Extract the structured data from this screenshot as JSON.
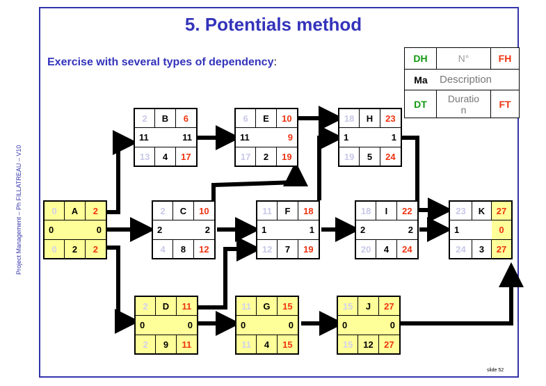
{
  "slide": {
    "title": "5. Potentials method",
    "subtitle": "Exercise with several types of dependency",
    "subtitle_colon": ":",
    "side_label": "Project Management – Ph FILLATREAU – V10",
    "slide_number": "slide 52"
  },
  "legend": {
    "dh": "DH",
    "no": "N°",
    "fh": "FH",
    "ma": "Ma",
    "description": "Description",
    "duration": "Duratio\nn",
    "dt": "DT",
    "ft": "FT"
  },
  "colors": {
    "title_blue": "#3333bb",
    "early_red": "#ee3311",
    "late_lavender": "#c8c8e8",
    "legend_green": "#119911",
    "critical_yellow": "#ffff99"
  },
  "tasks": {
    "A": {
      "es": "0",
      "name": "A",
      "ef": "2",
      "ml": "0",
      "mr": "0",
      "ls": "0",
      "dur": "2",
      "lf": "2"
    },
    "B": {
      "es": "2",
      "name": "B",
      "ef": "6",
      "ml": "11",
      "mr": "11",
      "ls": "13",
      "dur": "4",
      "lf": "17"
    },
    "C": {
      "es": "2",
      "name": "C",
      "ef": "10",
      "ml": "2",
      "mr": "2",
      "ls": "4",
      "dur": "8",
      "lf": "12"
    },
    "D": {
      "es": "2",
      "name": "D",
      "ef": "11",
      "ml": "0",
      "mr": "0",
      "ls": "2",
      "dur": "9",
      "lf": "11"
    },
    "E": {
      "es": "6",
      "name": "E",
      "ef": "10",
      "ml": "11",
      "mr": "9",
      "ls": "17",
      "dur": "2",
      "lf": "19"
    },
    "F": {
      "es": "11",
      "name": "F",
      "ef": "18",
      "ml": "1",
      "mr": "1",
      "ls": "12",
      "dur": "7",
      "lf": "19"
    },
    "G": {
      "es": "11",
      "name": "G",
      "ef": "15",
      "ml": "0",
      "mr": "0",
      "ls": "11",
      "dur": "4",
      "lf": "15"
    },
    "H": {
      "es": "18",
      "name": "H",
      "ef": "23",
      "ml": "1",
      "mr": "1",
      "ls": "19",
      "dur": "5",
      "lf": "24"
    },
    "I": {
      "es": "18",
      "name": "I",
      "ef": "22",
      "ml": "2",
      "mr": "2",
      "ls": "20",
      "dur": "4",
      "lf": "24"
    },
    "J": {
      "es": "15",
      "name": "J",
      "ef": "27",
      "ml": "0",
      "mr": "0",
      "ls": "15",
      "dur": "12",
      "lf": "27"
    },
    "K": {
      "es": "23",
      "name": "K",
      "ef": "27",
      "ml": "1",
      "mr": "0",
      "ls": "24",
      "dur": "3",
      "lf": "27"
    }
  }
}
